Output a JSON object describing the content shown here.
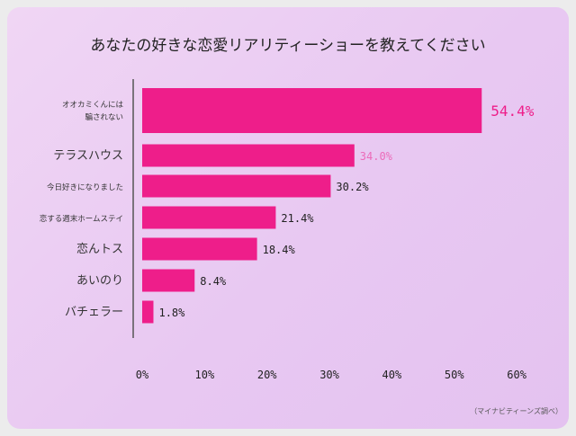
{
  "chart_data": {
    "type": "bar",
    "orientation": "horizontal",
    "title": "あなたの好きな恋愛リアリティーショーを教えてください",
    "categories": [
      "オオカミくんには\n騙されない",
      "テラスハウス",
      "今日好きになりました",
      "恋する週末ホームステイ",
      "恋んトス",
      "あいのり",
      "バチェラー"
    ],
    "values": [
      54.4,
      34.0,
      30.2,
      21.4,
      18.4,
      8.4,
      1.8
    ],
    "value_labels": [
      "54.4%",
      "34.0%",
      "30.2%",
      "21.4%",
      "18.4%",
      "8.4%",
      "1.8%"
    ],
    "xlim": [
      0,
      60
    ],
    "x_ticks": [
      "0%",
      "10%",
      "20%",
      "30%",
      "40%",
      "50%",
      "60%"
    ],
    "grid": false,
    "bar_color": "#ee1e8a",
    "highlight_label_color": "#ee1e8a",
    "label_color": "#222222",
    "source": "（マイナビティーンズ調べ）"
  },
  "colors": {
    "background_start": "#f0d6f4",
    "background_end": "#e4c2f0",
    "bar": "#ee1e8a"
  }
}
